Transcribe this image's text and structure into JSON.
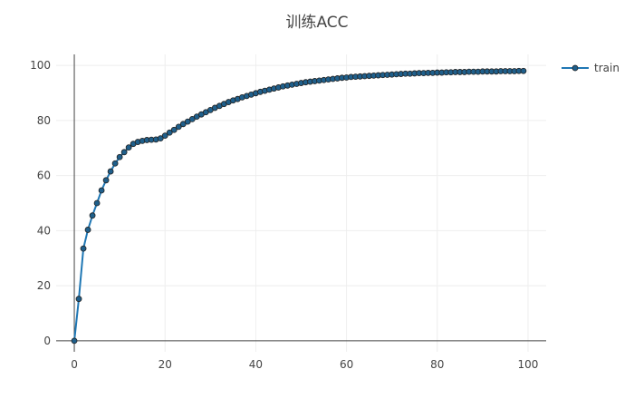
{
  "chart_data": {
    "type": "line",
    "title": "训练ACC",
    "xlim": [
      -4,
      104
    ],
    "ylim": [
      -4,
      104
    ],
    "x_ticks": [
      0,
      20,
      40,
      60,
      80,
      100
    ],
    "y_ticks": [
      0,
      20,
      40,
      60,
      80,
      100
    ],
    "grid": true,
    "legend_position": "top-right",
    "series": [
      {
        "name": "train",
        "color": "#1f77b4",
        "marker_fill": "#1f5f8b",
        "marker_edge": "#222222",
        "x": [
          0,
          1,
          2,
          3,
          4,
          5,
          6,
          7,
          8,
          9,
          10,
          11,
          12,
          13,
          14,
          15,
          16,
          17,
          18,
          19,
          20,
          21,
          22,
          23,
          24,
          25,
          26,
          27,
          28,
          29,
          30,
          31,
          32,
          33,
          34,
          35,
          36,
          37,
          38,
          39,
          40,
          41,
          42,
          43,
          44,
          45,
          46,
          47,
          48,
          49,
          50,
          51,
          52,
          53,
          54,
          55,
          56,
          57,
          58,
          59,
          60,
          61,
          62,
          63,
          64,
          65,
          66,
          67,
          68,
          69,
          70,
          71,
          72,
          73,
          74,
          75,
          76,
          77,
          78,
          79,
          80,
          81,
          82,
          83,
          84,
          85,
          86,
          87,
          88,
          89,
          90,
          91,
          92,
          93,
          94,
          95,
          96,
          97,
          98,
          99
        ],
        "y": [
          0,
          15.2,
          33.5,
          40.3,
          45.5,
          50.0,
          54.6,
          58.3,
          61.5,
          64.4,
          66.7,
          68.5,
          70.2,
          71.5,
          72.2,
          72.6,
          72.9,
          73.0,
          73.1,
          73.5,
          74.5,
          75.6,
          76.6,
          77.7,
          78.7,
          79.6,
          80.5,
          81.4,
          82.2,
          83.0,
          83.8,
          84.6,
          85.3,
          86.0,
          86.7,
          87.3,
          87.8,
          88.4,
          88.9,
          89.4,
          89.9,
          90.4,
          90.8,
          91.2,
          91.6,
          92.0,
          92.4,
          92.7,
          93.0,
          93.3,
          93.6,
          93.9,
          94.1,
          94.3,
          94.5,
          94.7,
          94.9,
          95.1,
          95.3,
          95.5,
          95.6,
          95.8,
          95.9,
          96.0,
          96.1,
          96.2,
          96.3,
          96.4,
          96.5,
          96.6,
          96.7,
          96.8,
          96.9,
          97.0,
          97.0,
          97.1,
          97.2,
          97.2,
          97.3,
          97.3,
          97.4,
          97.4,
          97.5,
          97.5,
          97.6,
          97.6,
          97.6,
          97.7,
          97.7,
          97.7,
          97.8,
          97.8,
          97.8,
          97.8,
          97.9,
          97.9,
          97.9,
          97.9,
          98.0,
          98.0
        ]
      }
    ]
  }
}
